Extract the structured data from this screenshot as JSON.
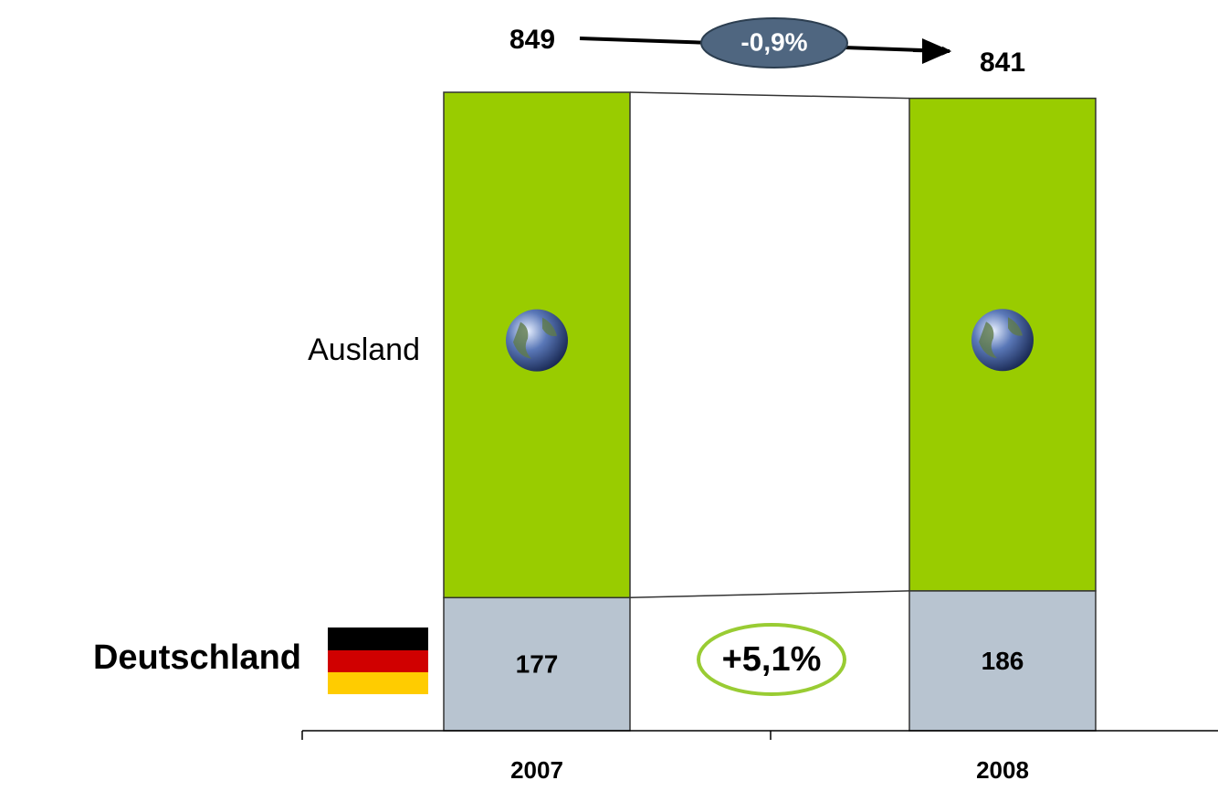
{
  "chart_data": {
    "type": "stacked_bar",
    "categories": [
      "2007",
      "2008"
    ],
    "series": [
      {
        "name": "Deutschland",
        "color": "#b8c4d0",
        "values": [
          177,
          186
        ]
      },
      {
        "name": "Ausland",
        "color": "#99cc00",
        "values": [
          672,
          655
        ]
      }
    ],
    "totals": [
      849,
      841
    ],
    "annotations": {
      "total_change": "-0,9%",
      "deutschland_change": "+5,1%"
    },
    "ylim": [
      0,
      850
    ]
  }
}
